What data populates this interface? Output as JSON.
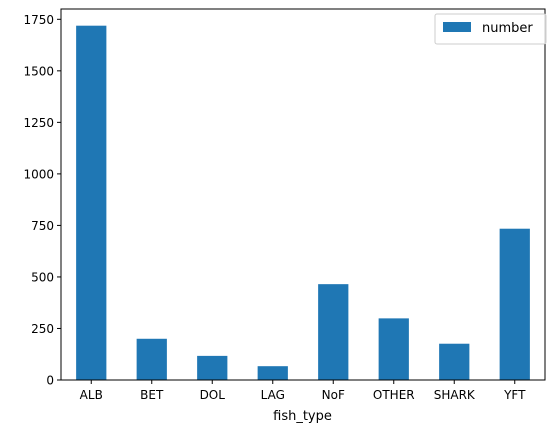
{
  "chart_data": {
    "type": "bar",
    "title": "",
    "xlabel": "fish_type",
    "ylabel": "",
    "categories": [
      "ALB",
      "BET",
      "DOL",
      "LAG",
      "NoF",
      "OTHER",
      "SHARK",
      "YFT"
    ],
    "series": [
      {
        "name": "number",
        "color": "#1f77b4",
        "values": [
          1719,
          200,
          117,
          67,
          465,
          299,
          176,
          734
        ]
      }
    ],
    "ylim": [
      0,
      1800
    ],
    "yticks": [
      0,
      250,
      500,
      750,
      1000,
      1250,
      1500,
      1750
    ],
    "ytick_labels": [
      "0",
      "250",
      "500",
      "750",
      "1000",
      "1250",
      "1500",
      "1750"
    ],
    "legend": {
      "position": "top-right",
      "entries": [
        "number"
      ]
    },
    "grid": false
  }
}
